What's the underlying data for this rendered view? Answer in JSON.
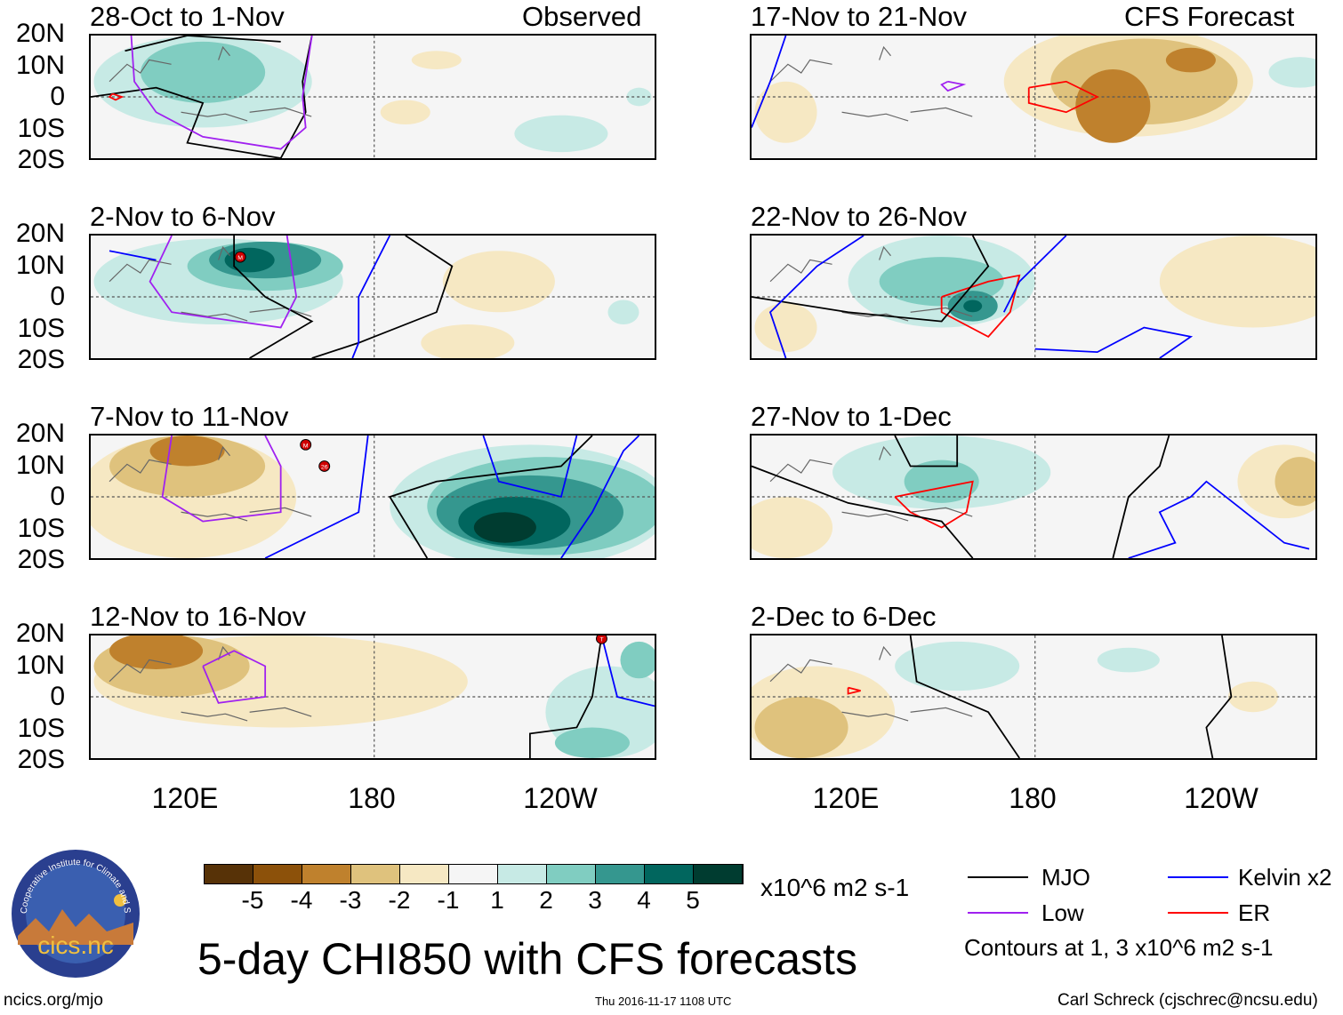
{
  "header": {
    "left_label": "Observed",
    "right_label": "CFS Forecast"
  },
  "lat_labels": [
    "20N",
    "10N",
    "0",
    "10S",
    "20S"
  ],
  "lon_labels": [
    "120E",
    "180",
    "120W"
  ],
  "colors": {
    "-5": "#573207",
    "-4": "#8c510a",
    "-3": "#bf812d",
    "-2": "#dfc27d",
    "-1": "#f6e8c3",
    "0": "#f5f5f5",
    "1": "#c7eae5",
    "2": "#80cdc1",
    "3": "#35978f",
    "4": "#01665e",
    "5": "#003c30",
    "MJO": "#000000",
    "Low": "#a020f0",
    "Kelvin": "#0000ff",
    "ER": "#ff0000"
  },
  "panels": [
    {
      "title": "28-Oct to 1-Nov",
      "blobs": [
        [
          125,
          5,
          35,
          15,
          1
        ],
        [
          125,
          8,
          20,
          10,
          2
        ],
        [
          200,
          12,
          8,
          3,
          -1
        ],
        [
          190,
          -5,
          8,
          4,
          -1
        ],
        [
          240,
          -12,
          15,
          6,
          1
        ],
        [
          265,
          0,
          4,
          3,
          1
        ]
      ],
      "contours": [
        {
          "type": "MJO",
          "pts": [
            [
              100,
              15
            ],
            [
              120,
              20
            ],
            [
              150,
              18
            ]
          ]
        },
        {
          "type": "MJO",
          "pts": [
            [
              89,
              0
            ],
            [
              110,
              3
            ],
            [
              125,
              -2
            ],
            [
              120,
              -15
            ],
            [
              150,
              -20
            ]
          ]
        },
        {
          "type": "MJO",
          "pts": [
            [
              160,
              20
            ],
            [
              157,
              5
            ],
            [
              158,
              -5
            ],
            [
              150,
              -20
            ]
          ]
        },
        {
          "type": "Low",
          "pts": [
            [
              102,
              20
            ],
            [
              103,
              5
            ],
            [
              110,
              -5
            ],
            [
              125,
              -13
            ],
            [
              150,
              -17
            ],
            [
              158,
              -10
            ],
            [
              157,
              0
            ],
            [
              160,
              20
            ]
          ]
        },
        {
          "type": "ER",
          "pts": [
            [
              96,
              1
            ],
            [
              99,
              0
            ],
            [
              97,
              -1
            ],
            [
              95,
              0
            ],
            [
              96,
              1
            ]
          ]
        }
      ],
      "markers": []
    },
    {
      "title": "2-Nov to 6-Nov",
      "blobs": [
        [
          130,
          5,
          40,
          14,
          1
        ],
        [
          145,
          10,
          25,
          8,
          2
        ],
        [
          145,
          12,
          18,
          6,
          3
        ],
        [
          140,
          12,
          8,
          4,
          4
        ],
        [
          220,
          5,
          18,
          10,
          -1
        ],
        [
          210,
          -15,
          15,
          6,
          -1
        ],
        [
          260,
          -5,
          5,
          4,
          1
        ]
      ],
      "contours": [
        {
          "type": "MJO",
          "pts": [
            [
              135,
              20
            ],
            [
              135,
              10
            ],
            [
              145,
              0
            ],
            [
              160,
              -8
            ],
            [
              140,
              -20
            ]
          ]
        },
        {
          "type": "MJO",
          "pts": [
            [
              190,
              20
            ],
            [
              205,
              10
            ],
            [
              200,
              -5
            ],
            [
              175,
              -15
            ],
            [
              160,
              -20
            ]
          ]
        },
        {
          "type": "Low",
          "pts": [
            [
              115,
              20
            ],
            [
              108,
              5
            ],
            [
              115,
              -5
            ],
            [
              150,
              -10
            ],
            [
              155,
              0
            ],
            [
              152,
              20
            ]
          ]
        },
        {
          "type": "Kelvin",
          "pts": [
            [
              95,
              15
            ],
            [
              110,
              12
            ]
          ]
        },
        {
          "type": "Kelvin",
          "pts": [
            [
              185,
              20
            ],
            [
              175,
              0
            ],
            [
              175,
              -15
            ],
            [
              173,
              -20
            ]
          ]
        }
      ],
      "markers": [
        {
          "lon": 137,
          "lat": 13,
          "label": "M"
        }
      ]
    },
    {
      "title": "7-Nov to 11-Nov",
      "blobs": [
        [
          120,
          0,
          35,
          20,
          -1
        ],
        [
          120,
          10,
          25,
          10,
          -2
        ],
        [
          120,
          15,
          12,
          5,
          -3
        ],
        [
          230,
          -3,
          45,
          20,
          1
        ],
        [
          235,
          -3,
          38,
          16,
          2
        ],
        [
          230,
          -5,
          30,
          12,
          3
        ],
        [
          225,
          -8,
          18,
          8,
          4
        ],
        [
          222,
          -10,
          10,
          5,
          5
        ]
      ],
      "contours": [
        {
          "type": "MJO",
          "pts": [
            [
              197,
              -20
            ],
            [
              185,
              0
            ],
            [
              200,
              5
            ],
            [
              240,
              10
            ],
            [
              250,
              20
            ]
          ]
        },
        {
          "type": "Low",
          "pts": [
            [
              115,
              20
            ],
            [
              112,
              0
            ],
            [
              125,
              -8
            ],
            [
              150,
              -5
            ],
            [
              150,
              10
            ],
            [
              145,
              20
            ]
          ]
        },
        {
          "type": "Kelvin",
          "pts": [
            [
              145,
              -20
            ],
            [
              165,
              -10
            ],
            [
              175,
              -5
            ],
            [
              178,
              20
            ]
          ]
        },
        {
          "type": "Kelvin",
          "pts": [
            [
              215,
              20
            ],
            [
              220,
              5
            ],
            [
              240,
              0
            ],
            [
              245,
              20
            ]
          ]
        },
        {
          "type": "Kelvin",
          "pts": [
            [
              240,
              -20
            ],
            [
              250,
              -5
            ],
            [
              260,
              15
            ],
            [
              265,
              20
            ]
          ]
        }
      ],
      "markers": [
        {
          "lon": 158,
          "lat": 17,
          "label": "M"
        },
        {
          "lon": 164,
          "lat": 10,
          "label": "26"
        }
      ]
    },
    {
      "title": "12-Nov to 16-Nov",
      "blobs": [
        [
          150,
          5,
          60,
          15,
          -1
        ],
        [
          115,
          10,
          25,
          10,
          -2
        ],
        [
          110,
          15,
          15,
          6,
          -3
        ],
        [
          255,
          -5,
          20,
          15,
          1
        ],
        [
          250,
          -15,
          12,
          5,
          2
        ],
        [
          265,
          12,
          6,
          6,
          2
        ]
      ],
      "contours": [
        {
          "type": "Low",
          "pts": [
            [
              125,
              10
            ],
            [
              135,
              15
            ],
            [
              145,
              10
            ],
            [
              145,
              0
            ],
            [
              130,
              -2
            ],
            [
              125,
              10
            ]
          ]
        },
        {
          "type": "MJO",
          "pts": [
            [
              230,
              -20
            ],
            [
              230,
              -12
            ],
            [
              245,
              -10
            ],
            [
              250,
              0
            ],
            [
              253,
              20
            ]
          ]
        },
        {
          "type": "Kelvin",
          "pts": [
            [
              253,
              20
            ],
            [
              258,
              0
            ],
            [
              270,
              -3
            ]
          ]
        }
      ],
      "markers": [
        {
          "lon": 253,
          "lat": 19,
          "label": "T"
        }
      ]
    },
    {
      "title": "17-Nov to 21-Nov",
      "blobs": [
        [
          210,
          5,
          40,
          18,
          -1
        ],
        [
          215,
          5,
          30,
          14,
          -2
        ],
        [
          205,
          -3,
          12,
          12,
          -3
        ],
        [
          230,
          12,
          8,
          4,
          -3
        ],
        [
          265,
          8,
          10,
          5,
          1
        ],
        [
          100,
          -5,
          10,
          10,
          -1
        ]
      ],
      "contours": [
        {
          "type": "ER",
          "pts": [
            [
              178,
              3
            ],
            [
              190,
              5
            ],
            [
              200,
              0
            ],
            [
              190,
              -5
            ],
            [
              178,
              -2
            ],
            [
              178,
              3
            ]
          ]
        },
        {
          "type": "Low",
          "pts": [
            [
              152,
              5
            ],
            [
              157,
              4
            ],
            [
              152,
              2
            ],
            [
              150,
              4
            ],
            [
              152,
              5
            ]
          ]
        },
        {
          "type": "Kelvin",
          "pts": [
            [
              100,
              20
            ],
            [
              95,
              5
            ],
            [
              89,
              -10
            ]
          ]
        }
      ],
      "markers": []
    },
    {
      "title": "22-Nov to 26-Nov",
      "blobs": [
        [
          150,
          5,
          30,
          15,
          1
        ],
        [
          150,
          5,
          20,
          8,
          2
        ],
        [
          160,
          -3,
          8,
          5,
          3
        ],
        [
          160,
          -3,
          3,
          2,
          4
        ],
        [
          250,
          5,
          30,
          15,
          -1
        ],
        [
          100,
          -10,
          10,
          8,
          -1
        ]
      ],
      "contours": [
        {
          "type": "ER",
          "pts": [
            [
              150,
              0
            ],
            [
              165,
              5
            ],
            [
              175,
              7
            ],
            [
              172,
              -5
            ],
            [
              165,
              -13
            ],
            [
              150,
              -5
            ],
            [
              150,
              0
            ]
          ]
        },
        {
          "type": "MJO",
          "pts": [
            [
              89,
              0
            ],
            [
              120,
              -5
            ],
            [
              150,
              -8
            ],
            [
              165,
              10
            ],
            [
              160,
              20
            ]
          ]
        },
        {
          "type": "Kelvin",
          "pts": [
            [
              100,
              -20
            ],
            [
              95,
              -5
            ],
            [
              110,
              10
            ],
            [
              125,
              20
            ]
          ]
        },
        {
          "type": "Kelvin",
          "pts": [
            [
              170,
              -5
            ],
            [
              175,
              5
            ],
            [
              190,
              20
            ]
          ]
        },
        {
          "type": "Kelvin",
          "pts": [
            [
              180,
              -17
            ],
            [
              200,
              -18
            ],
            [
              215,
              -10
            ],
            [
              230,
              -13
            ],
            [
              220,
              -20
            ]
          ]
        }
      ],
      "markers": []
    },
    {
      "title": "27-Nov to 1-Dec",
      "blobs": [
        [
          150,
          8,
          35,
          12,
          1
        ],
        [
          150,
          5,
          12,
          7,
          2
        ],
        [
          260,
          5,
          15,
          12,
          -1
        ],
        [
          265,
          5,
          8,
          8,
          -2
        ],
        [
          100,
          -10,
          15,
          10,
          -1
        ]
      ],
      "contours": [
        {
          "type": "ER",
          "pts": [
            [
              135,
              0
            ],
            [
              160,
              5
            ],
            [
              158,
              -5
            ],
            [
              150,
              -10
            ],
            [
              140,
              -5
            ],
            [
              135,
              0
            ]
          ]
        },
        {
          "type": "MJO",
          "pts": [
            [
              89,
              10
            ],
            [
              120,
              -2
            ],
            [
              150,
              -8
            ],
            [
              160,
              -20
            ]
          ]
        },
        {
          "type": "MJO",
          "pts": [
            [
              135,
              20
            ],
            [
              140,
              10
            ],
            [
              155,
              10
            ],
            [
              155,
              20
            ]
          ]
        },
        {
          "type": "MJO",
          "pts": [
            [
              205,
              -20
            ],
            [
              210,
              0
            ],
            [
              220,
              10
            ],
            [
              223,
              20
            ]
          ]
        },
        {
          "type": "Kelvin",
          "pts": [
            [
              210,
              -20
            ],
            [
              225,
              -15
            ],
            [
              220,
              -5
            ],
            [
              230,
              0
            ],
            [
              235,
              5
            ],
            [
              260,
              -15
            ],
            [
              268,
              -17
            ]
          ]
        }
      ],
      "markers": []
    },
    {
      "title": "2-Dec to 6-Dec",
      "blobs": [
        [
          155,
          10,
          20,
          8,
          1
        ],
        [
          110,
          -5,
          25,
          15,
          -1
        ],
        [
          105,
          -10,
          15,
          10,
          -2
        ],
        [
          210,
          12,
          10,
          4,
          1
        ],
        [
          250,
          0,
          8,
          5,
          -1
        ]
      ],
      "contours": [
        {
          "type": "MJO",
          "pts": [
            [
              140,
              20
            ],
            [
              142,
              5
            ],
            [
              165,
              -5
            ],
            [
              175,
              -20
            ]
          ]
        },
        {
          "type": "MJO",
          "pts": [
            [
              240,
              20
            ],
            [
              243,
              0
            ],
            [
              235,
              -10
            ],
            [
              237,
              -20
            ]
          ]
        },
        {
          "type": "ER",
          "pts": [
            [
              120,
              3
            ],
            [
              124,
              2
            ],
            [
              120,
              1
            ],
            [
              120,
              3
            ]
          ]
        }
      ],
      "markers": []
    }
  ],
  "colorbar": {
    "levels": [
      -5,
      -4,
      -3,
      -2,
      -1,
      0,
      1,
      2,
      3,
      4,
      5
    ],
    "labels": [
      "-5",
      "-4",
      "-3",
      "-2",
      "-1",
      "1",
      "2",
      "3",
      "4",
      "5"
    ],
    "units": "x10^6 m2 s-1"
  },
  "legend": {
    "mjo": "MJO",
    "low": "Low",
    "kelvin": "Kelvin x2",
    "er": "ER",
    "note": "Contours at 1, 3 x10^6 m2 s-1"
  },
  "footer": {
    "title": "5-day CHI850 with CFS forecasts",
    "url": "ncics.org/mjo",
    "timestamp": "Thu 2016-11-17 1108 UTC",
    "credit": "Carl Schreck (cjschrec@ncsu.edu)",
    "logo_text": "cics.nc",
    "logo_ring": "Cooperative Institute for Climate and Satellites"
  }
}
